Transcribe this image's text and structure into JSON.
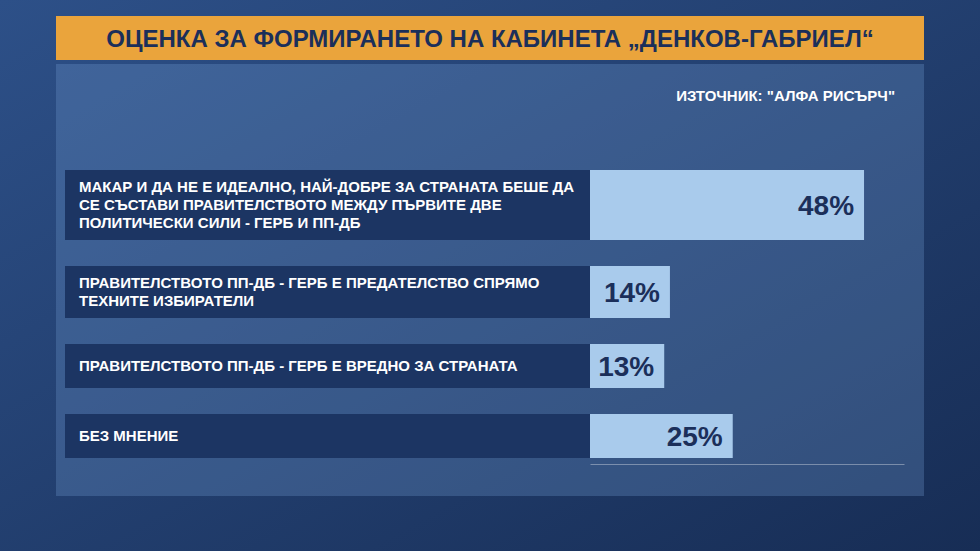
{
  "chart_data": {
    "type": "bar",
    "orientation": "horizontal",
    "title": "ОЦЕНКА ЗА ФОРМИРАНЕТО НА КАБИНЕТА „ДЕНКОВ-ГАБРИЕЛ“",
    "source": "ИЗТОЧНИК: \"АЛФА РИСЪРЧ\"",
    "categories": [
      "МАКАР И ДА НЕ Е ИДЕАЛНО, НАЙ-ДОБРЕ ЗА СТРАНАТА БЕШЕ ДА СЕ СЪСТАВИ ПРАВИТЕЛСТВОТО МЕЖДУ ПЪРВИТЕ ДВЕ ПОЛИТИЧЕСКИ СИЛИ - ГЕРБ И ПП-ДБ",
      "ПРАВИТЕЛСТВОТО ПП-ДБ - ГЕРБ Е ПРЕДАТЕЛСТВО СПРЯМО ТЕХНИТЕ ИЗБИРАТЕЛИ",
      "ПРАВИТЕЛСТВОТО ПП-ДБ - ГЕРБ Е ВРЕДНО ЗА СТРАНАТА",
      "БЕЗ МНЕНИЕ"
    ],
    "values": [
      48,
      14,
      13,
      25
    ],
    "value_labels": [
      "48%",
      "14%",
      "13%",
      "25%"
    ],
    "xlim": [
      0,
      55
    ],
    "tick_labels": false,
    "data_labels": true,
    "color": "#a9cbec"
  }
}
